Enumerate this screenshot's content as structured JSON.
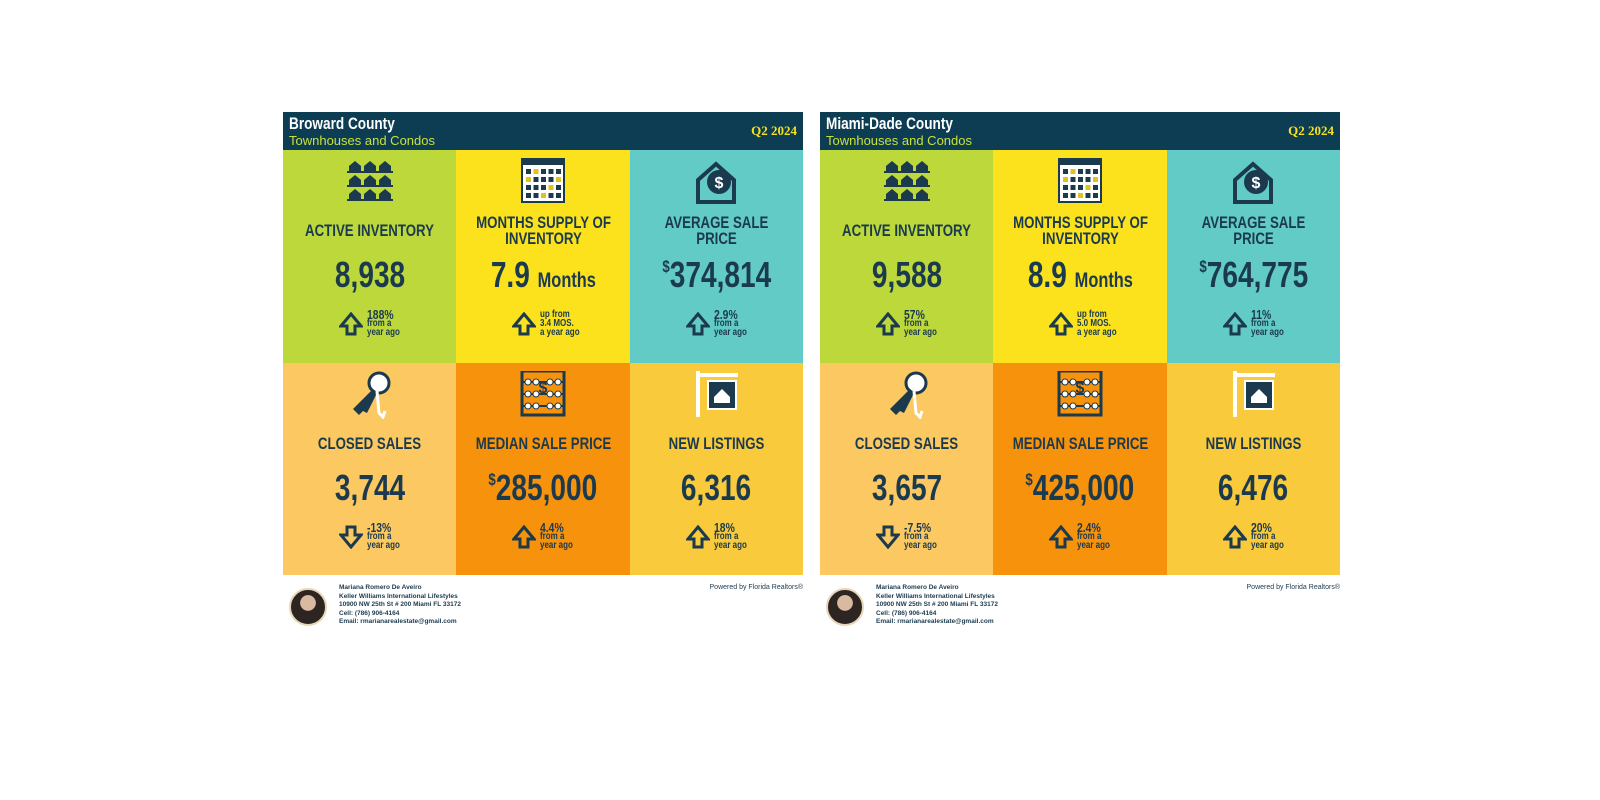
{
  "panels": [
    {
      "header": {
        "title": "Broward County",
        "subtitle": "Townhouses and Condos",
        "period": "Q2 2024"
      },
      "tiles": [
        {
          "label": "ACTIVE INVENTORY",
          "value": "8,938",
          "direction": "up",
          "change": [
            "188%",
            "from a",
            "year ago"
          ]
        },
        {
          "label": "MONTHS SUPPLY OF INVENTORY",
          "value": "7.9",
          "unit": "Months",
          "direction": "up",
          "change": [
            "up from",
            "3.4 MOS.",
            "a year ago"
          ]
        },
        {
          "label": "AVERAGE SALE PRICE",
          "currency": "$",
          "value": "374,814",
          "direction": "up",
          "change": [
            "2.9%",
            "from a",
            "year ago"
          ]
        },
        {
          "label": "CLOSED SALES",
          "value": "3,744",
          "direction": "down",
          "change": [
            "-13%",
            "from a",
            "year ago"
          ]
        },
        {
          "label": "MEDIAN SALE PRICE",
          "currency": "$",
          "value": "285,000",
          "direction": "up",
          "change": [
            "4.4%",
            "from a",
            "year ago"
          ]
        },
        {
          "label": "NEW LISTINGS",
          "value": "6,316",
          "direction": "up",
          "change": [
            "18%",
            "from a",
            "year ago"
          ]
        }
      ],
      "footer": {
        "agent": [
          "Mariana Romero De Aveiro",
          "Keller Williams International Lifestyles",
          "10900 NW 25th St # 200 Miami FL 33172",
          "Cell: (786) 906-4164",
          "Email: rmarianarealestate@gmail.com"
        ],
        "powered": "Powered by Florida Realtors®"
      }
    },
    {
      "header": {
        "title": "Miami-Dade County",
        "subtitle": "Townhouses and Condos",
        "period": "Q2 2024"
      },
      "tiles": [
        {
          "label": "ACTIVE INVENTORY",
          "value": "9,588",
          "direction": "up",
          "change": [
            "57%",
            "from a",
            "year ago"
          ]
        },
        {
          "label": "MONTHS SUPPLY OF INVENTORY",
          "value": "8.9",
          "unit": "Months",
          "direction": "up",
          "change": [
            "up from",
            "5.0 MOS.",
            "a year ago"
          ]
        },
        {
          "label": "AVERAGE SALE PRICE",
          "currency": "$",
          "value": "764,775",
          "direction": "up",
          "change": [
            "11%",
            "from a",
            "year ago"
          ]
        },
        {
          "label": "CLOSED SALES",
          "value": "3,657",
          "direction": "down",
          "change": [
            "-7.5%",
            "from a",
            "year ago"
          ]
        },
        {
          "label": "MEDIAN SALE PRICE",
          "currency": "$",
          "value": "425,000",
          "direction": "up",
          "change": [
            "2.4%",
            "from a",
            "year ago"
          ]
        },
        {
          "label": "NEW LISTINGS",
          "value": "6,476",
          "direction": "up",
          "change": [
            "20%",
            "from a",
            "year ago"
          ]
        }
      ],
      "footer": {
        "agent": [
          "Mariana Romero De Aveiro",
          "Keller Williams International Lifestyles",
          "10900 NW 25th St # 200 Miami FL 33172",
          "Cell: (786) 906-4164",
          "Email: rmarianarealestate@gmail.com"
        ],
        "powered": "Powered by Florida Realtors®"
      }
    }
  ]
}
